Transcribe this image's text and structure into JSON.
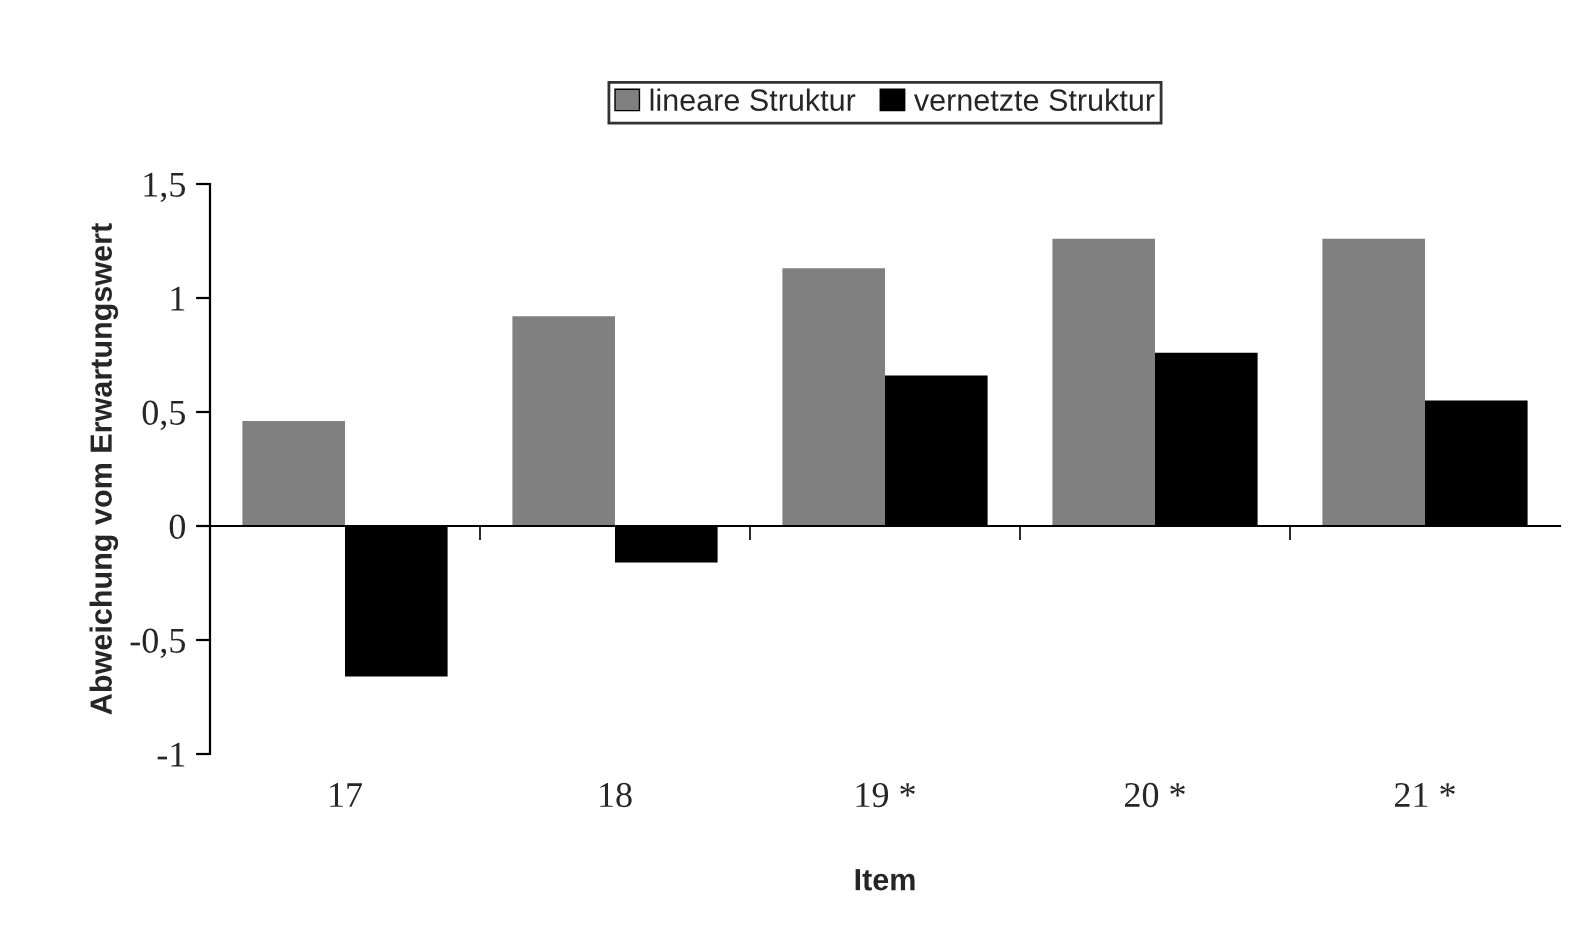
{
  "chart_data": {
    "type": "bar",
    "xlabel": "Item",
    "ylabel": "Abweichung vom Erwartungswert",
    "categories": [
      "17",
      "18",
      "19 *",
      "20 *",
      "21 *"
    ],
    "series": [
      {
        "name": "lineare Struktur",
        "color": "#808080",
        "values": [
          0.46,
          0.92,
          1.13,
          1.26,
          1.26
        ]
      },
      {
        "name": "vernetzte Struktur",
        "color": "#000000",
        "values": [
          -0.66,
          -0.16,
          0.66,
          0.76,
          0.55
        ]
      }
    ],
    "ylim": [
      -1,
      1.5
    ],
    "yticks": [
      {
        "value": -1,
        "label": "-1"
      },
      {
        "value": -0.5,
        "label": "-0,5"
      },
      {
        "value": 0,
        "label": "0"
      },
      {
        "value": 0.5,
        "label": "0,5"
      },
      {
        "value": 1,
        "label": "1"
      },
      {
        "value": 1.5,
        "label": "1,5"
      }
    ],
    "legend": "top"
  }
}
